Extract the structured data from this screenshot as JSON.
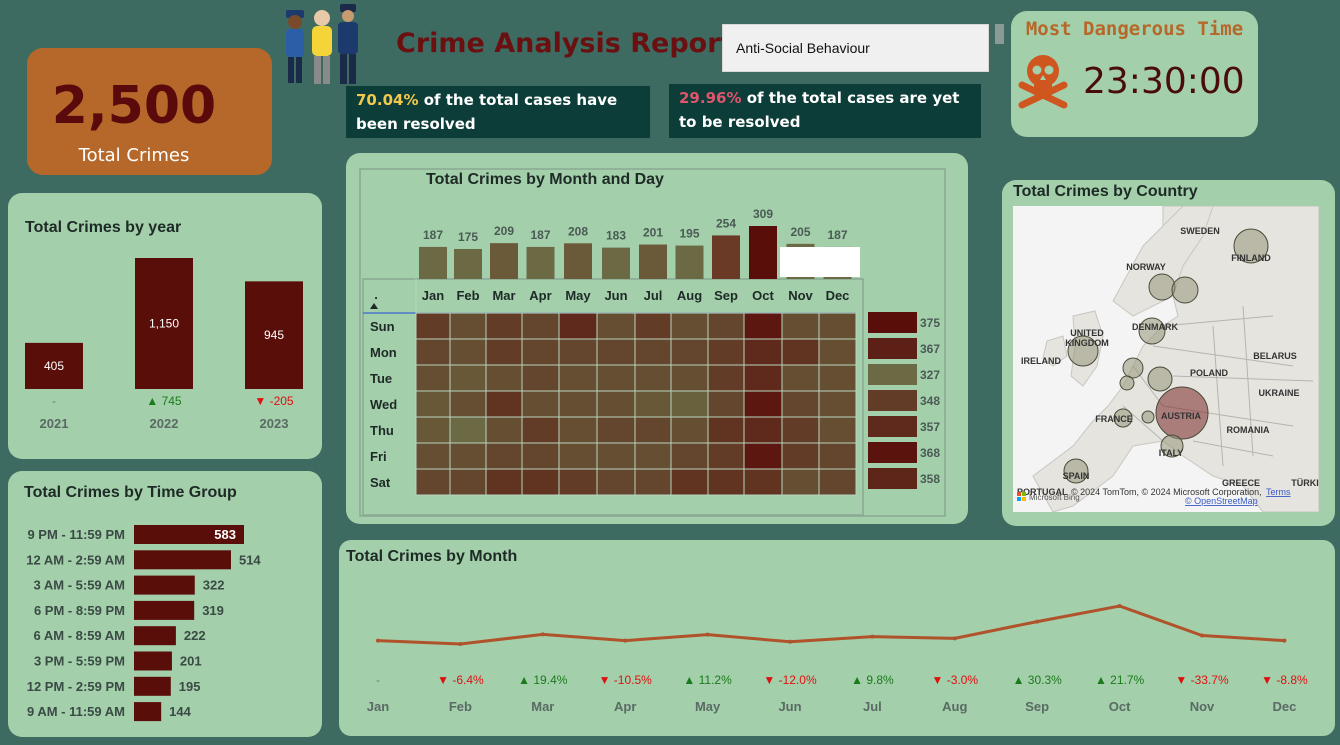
{
  "header": {
    "title": "Crime Analysis Report",
    "filter_value": "Anti-Social Behaviour",
    "resolved_pct": "70.04%",
    "resolved_text": " of the total cases have been resolved",
    "unresolved_pct": "29.96%",
    "unresolved_text": " of the total cases are yet to be resolved"
  },
  "kpi": {
    "value": "2,500",
    "label": "Total Crimes"
  },
  "dangerous_time": {
    "title": "Most Dangerous Time",
    "value": "23:30:00",
    "icon": "skull-crossbones-icon"
  },
  "colors": {
    "maroon": "#5a0e0a",
    "olive": "#6b6a44",
    "orange": "#b5682a",
    "panel": "#a3cfab",
    "line": "#b0532a",
    "up": "#1b7a1b",
    "down": "#e01010"
  },
  "chart_data": [
    {
      "id": "year",
      "type": "bar",
      "title": "Total Crimes by year",
      "categories": [
        "2021",
        "2022",
        "2023"
      ],
      "values": [
        405,
        1150,
        945
      ],
      "value_labels": [
        "405",
        "1,150",
        "945"
      ],
      "changes": [
        {
          "dir": "none",
          "text": "-"
        },
        {
          "dir": "up",
          "text": "745"
        },
        {
          "dir": "down",
          "text": "-205"
        }
      ]
    },
    {
      "id": "timegroup",
      "type": "bar",
      "orientation": "horizontal",
      "title": "Total Crimes by Time Group",
      "categories": [
        "9 PM - 11:59 PM",
        "12 AM - 2:59 AM",
        "3 AM - 5:59 AM",
        "6 PM - 8:59 PM",
        "6 AM - 8:59 AM",
        "3 PM - 5:59 PM",
        "12 PM - 2:59 PM",
        "9 AM - 11:59 AM"
      ],
      "values": [
        583,
        514,
        322,
        319,
        222,
        201,
        195,
        144
      ]
    },
    {
      "id": "heatmap",
      "type": "heatmap",
      "title": "Total Crimes by Month and Day",
      "header_cell": ".",
      "months": [
        "Jan",
        "Feb",
        "Mar",
        "Apr",
        "May",
        "Jun",
        "Jul",
        "Aug",
        "Sep",
        "Oct",
        "Nov",
        "Dec"
      ],
      "month_totals": [
        187,
        175,
        209,
        187,
        208,
        183,
        201,
        195,
        254,
        309,
        205,
        187
      ],
      "days": [
        "Sun",
        "Mon",
        "Tue",
        "Wed",
        "Thu",
        "Fri",
        "Sat"
      ],
      "day_totals": [
        375,
        367,
        327,
        348,
        357,
        368,
        358
      ],
      "levels": [
        [
          0.5,
          0.3,
          0.5,
          0.4,
          0.7,
          0.3,
          0.5,
          0.3,
          0.4,
          0.9,
          0.3,
          0.3
        ],
        [
          0.4,
          0.3,
          0.5,
          0.4,
          0.4,
          0.4,
          0.4,
          0.4,
          0.5,
          0.7,
          0.6,
          0.3
        ],
        [
          0.3,
          0.2,
          0.3,
          0.4,
          0.3,
          0.3,
          0.3,
          0.3,
          0.5,
          0.7,
          0.3,
          0.3
        ],
        [
          0.2,
          0.3,
          0.6,
          0.3,
          0.3,
          0.3,
          0.2,
          0.1,
          0.4,
          0.9,
          0.4,
          0.3
        ],
        [
          0.2,
          0.0,
          0.3,
          0.5,
          0.3,
          0.4,
          0.4,
          0.3,
          0.6,
          0.7,
          0.5,
          0.3
        ],
        [
          0.3,
          0.3,
          0.4,
          0.4,
          0.3,
          0.3,
          0.3,
          0.4,
          0.5,
          0.9,
          0.5,
          0.4
        ],
        [
          0.4,
          0.4,
          0.6,
          0.6,
          0.5,
          0.4,
          0.4,
          0.6,
          0.6,
          0.6,
          0.3,
          0.4
        ]
      ],
      "day_levels": [
        1.0,
        0.8,
        0.0,
        0.5,
        0.7,
        0.95,
        0.75
      ]
    },
    {
      "id": "month",
      "type": "line",
      "title": "Total Crimes by Month",
      "categories": [
        "Jan",
        "Feb",
        "Mar",
        "Apr",
        "May",
        "Jun",
        "Jul",
        "Aug",
        "Sep",
        "Oct",
        "Nov",
        "Dec"
      ],
      "values": [
        187,
        175,
        209,
        187,
        208,
        183,
        201,
        195,
        254,
        309,
        205,
        187
      ],
      "changes": [
        {
          "dir": "none",
          "text": "-"
        },
        {
          "dir": "down",
          "text": "-6.4%"
        },
        {
          "dir": "up",
          "text": "19.4%"
        },
        {
          "dir": "down",
          "text": "-10.5%"
        },
        {
          "dir": "up",
          "text": "11.2%"
        },
        {
          "dir": "down",
          "text": "-12.0%"
        },
        {
          "dir": "up",
          "text": "9.8%"
        },
        {
          "dir": "down",
          "text": "-3.0%"
        },
        {
          "dir": "up",
          "text": "30.3%"
        },
        {
          "dir": "up",
          "text": "21.7%"
        },
        {
          "dir": "down",
          "text": "-33.7%"
        },
        {
          "dir": "down",
          "text": "-8.8%"
        }
      ]
    }
  ],
  "map": {
    "title": "Total Crimes by Country",
    "labels": [
      "SWEDEN",
      "FINLAND",
      "NORWAY",
      "UNITED KINGDOM",
      "DENMARK",
      "IRELAND",
      "BELARUS",
      "POLAND",
      "UKRAINE",
      "FRANCE",
      "AUSTRIA",
      "ROMANIA",
      "ITALY",
      "SPAIN",
      "PORTUGAL",
      "GREECE",
      "TÜRKI"
    ],
    "attribution": "© 2024 TomTom, © 2024 Microsoft Corporation,",
    "terms": "Terms",
    "osm": "© OpenStreetMap",
    "bing": "Microsoft Bing"
  }
}
